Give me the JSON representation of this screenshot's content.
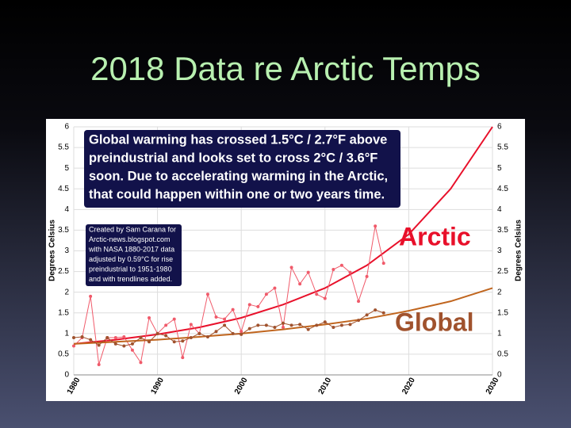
{
  "slide_title": "2018 Data re Arctic Temps",
  "chart_data": {
    "type": "line",
    "y_label": "Degrees Celsius",
    "y2_label": "Degrees Celsius",
    "x": [
      1980,
      1981,
      1982,
      1983,
      1984,
      1985,
      1986,
      1987,
      1988,
      1989,
      1990,
      1991,
      1992,
      1993,
      1994,
      1995,
      1996,
      1997,
      1998,
      1999,
      2000,
      2001,
      2002,
      2003,
      2004,
      2005,
      2006,
      2007,
      2008,
      2009,
      2010,
      2011,
      2012,
      2013,
      2014,
      2015,
      2016,
      2017
    ],
    "series": [
      {
        "name": "Arctic",
        "color": "#f05a6a",
        "trend_color": "#e8102a",
        "values": [
          0.7,
          0.9,
          1.9,
          0.25,
          0.9,
          0.9,
          0.92,
          0.6,
          0.3,
          1.38,
          1.0,
          1.2,
          1.35,
          0.42,
          1.22,
          1.0,
          1.95,
          1.4,
          1.35,
          1.58,
          1.05,
          1.7,
          1.65,
          1.95,
          2.1,
          1.15,
          2.6,
          2.2,
          2.48,
          1.95,
          1.85,
          2.55,
          2.65,
          2.48,
          1.78,
          2.38,
          3.6,
          2.7
        ],
        "trend_x": [
          1980,
          1985,
          1990,
          1995,
          2000,
          2005,
          2010,
          2015,
          2020,
          2025,
          2030
        ],
        "trend": [
          0.75,
          0.85,
          0.98,
          1.15,
          1.38,
          1.7,
          2.1,
          2.65,
          3.4,
          4.5,
          6.0
        ]
      },
      {
        "name": "Global",
        "color": "#a0522d",
        "trend_color": "#c0651e",
        "values": [
          0.9,
          0.92,
          0.85,
          0.72,
          0.9,
          0.75,
          0.7,
          0.75,
          0.9,
          0.8,
          1.0,
          0.95,
          0.8,
          0.82,
          0.9,
          1.0,
          0.92,
          1.05,
          1.2,
          1.0,
          0.98,
          1.12,
          1.2,
          1.2,
          1.15,
          1.25,
          1.2,
          1.22,
          1.1,
          1.2,
          1.28,
          1.15,
          1.2,
          1.22,
          1.32,
          1.45,
          1.57,
          1.5
        ],
        "trend_x": [
          1980,
          1985,
          1990,
          1995,
          2000,
          2005,
          2010,
          2015,
          2020,
          2025,
          2030
        ],
        "trend": [
          0.75,
          0.8,
          0.85,
          0.92,
          1.0,
          1.1,
          1.22,
          1.36,
          1.55,
          1.78,
          2.1
        ]
      }
    ],
    "xlim": [
      1980,
      2030
    ],
    "xticks": [
      1980,
      1990,
      2000,
      2010,
      2020,
      2030
    ],
    "ylim": [
      0,
      6
    ],
    "yticks": [
      0,
      0.5,
      1,
      1.5,
      2,
      2.5,
      3,
      3.5,
      4,
      4.5,
      5,
      5.5,
      6
    ],
    "y2lim": [
      0,
      6
    ],
    "y2ticks": [
      0,
      0.5,
      1,
      1.5,
      2,
      2.5,
      3,
      3.5,
      4,
      4.5,
      5,
      5.5,
      6
    ],
    "grid": true,
    "headline": [
      "Global warming has crossed 1.5°C / 2.7°F above",
      "preindustrial and looks set to cross 2°C / 3.6°F",
      "soon. Due to accelerating warming in the Arctic,",
      "that could happen within one or two years time."
    ],
    "credits": [
      "Created by Sam Carana for",
      "Arctic-news.blogspot.com",
      "with NASA 1880-2017 data",
      "adjusted by 0.59°C for rise",
      "preindustrial to 1951-1980",
      "and with trendlines added."
    ]
  }
}
